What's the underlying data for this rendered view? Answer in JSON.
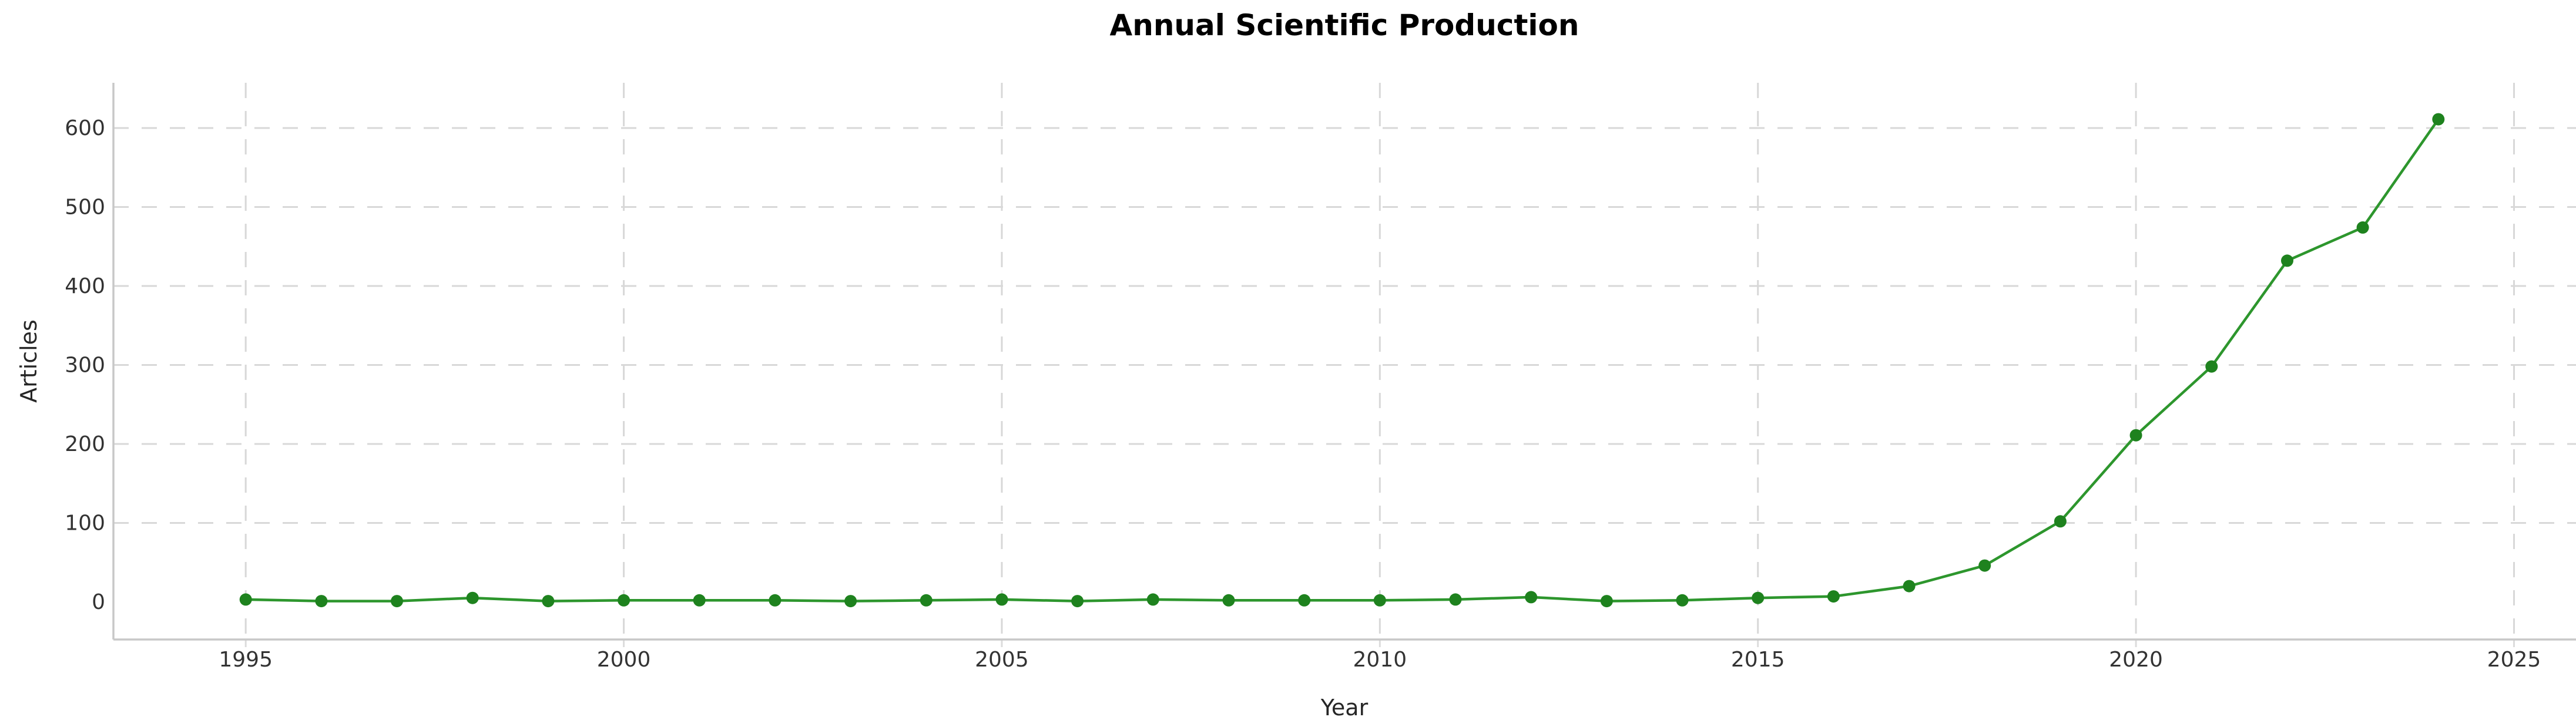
{
  "chart_data": {
    "type": "line",
    "title": "Annual Scientific Production",
    "xlabel": "Year",
    "ylabel": "Articles",
    "series": [
      {
        "name": "Articles",
        "x": [
          1995,
          1996,
          1997,
          1998,
          1999,
          2000,
          2001,
          2002,
          2003,
          2004,
          2005,
          2006,
          2007,
          2008,
          2009,
          2010,
          2011,
          2012,
          2013,
          2014,
          2015,
          2016,
          2017,
          2018,
          2019,
          2020,
          2021,
          2022,
          2023,
          2024
        ],
        "values": [
          3,
          1,
          1,
          5,
          1,
          2,
          2,
          2,
          1,
          2,
          3,
          1,
          3,
          2,
          2,
          2,
          3,
          6,
          1,
          2,
          5,
          7,
          20,
          46,
          102,
          211,
          298,
          432,
          474,
          611
        ]
      }
    ],
    "x_ticks": [
      1995,
      2000,
      2005,
      2010,
      2015,
      2020,
      2025
    ],
    "y_ticks": [
      0,
      100,
      200,
      300,
      400,
      500,
      600
    ],
    "grid_y_values_with_lines": [
      100,
      200,
      300,
      400,
      500,
      600
    ],
    "xlim": [
      1993.25,
      2025.82
    ],
    "ylim": [
      -47.6,
      657.2
    ],
    "grid": "dashed",
    "legend": "none",
    "colors": {
      "line": "#2d962d",
      "marker": "#1e821e",
      "grid": "#d8d8d8",
      "spine": "#c8c8c8",
      "tick": "#dcdcdc",
      "text": "#333333",
      "title": "#000000",
      "background": "#ffffff"
    }
  }
}
